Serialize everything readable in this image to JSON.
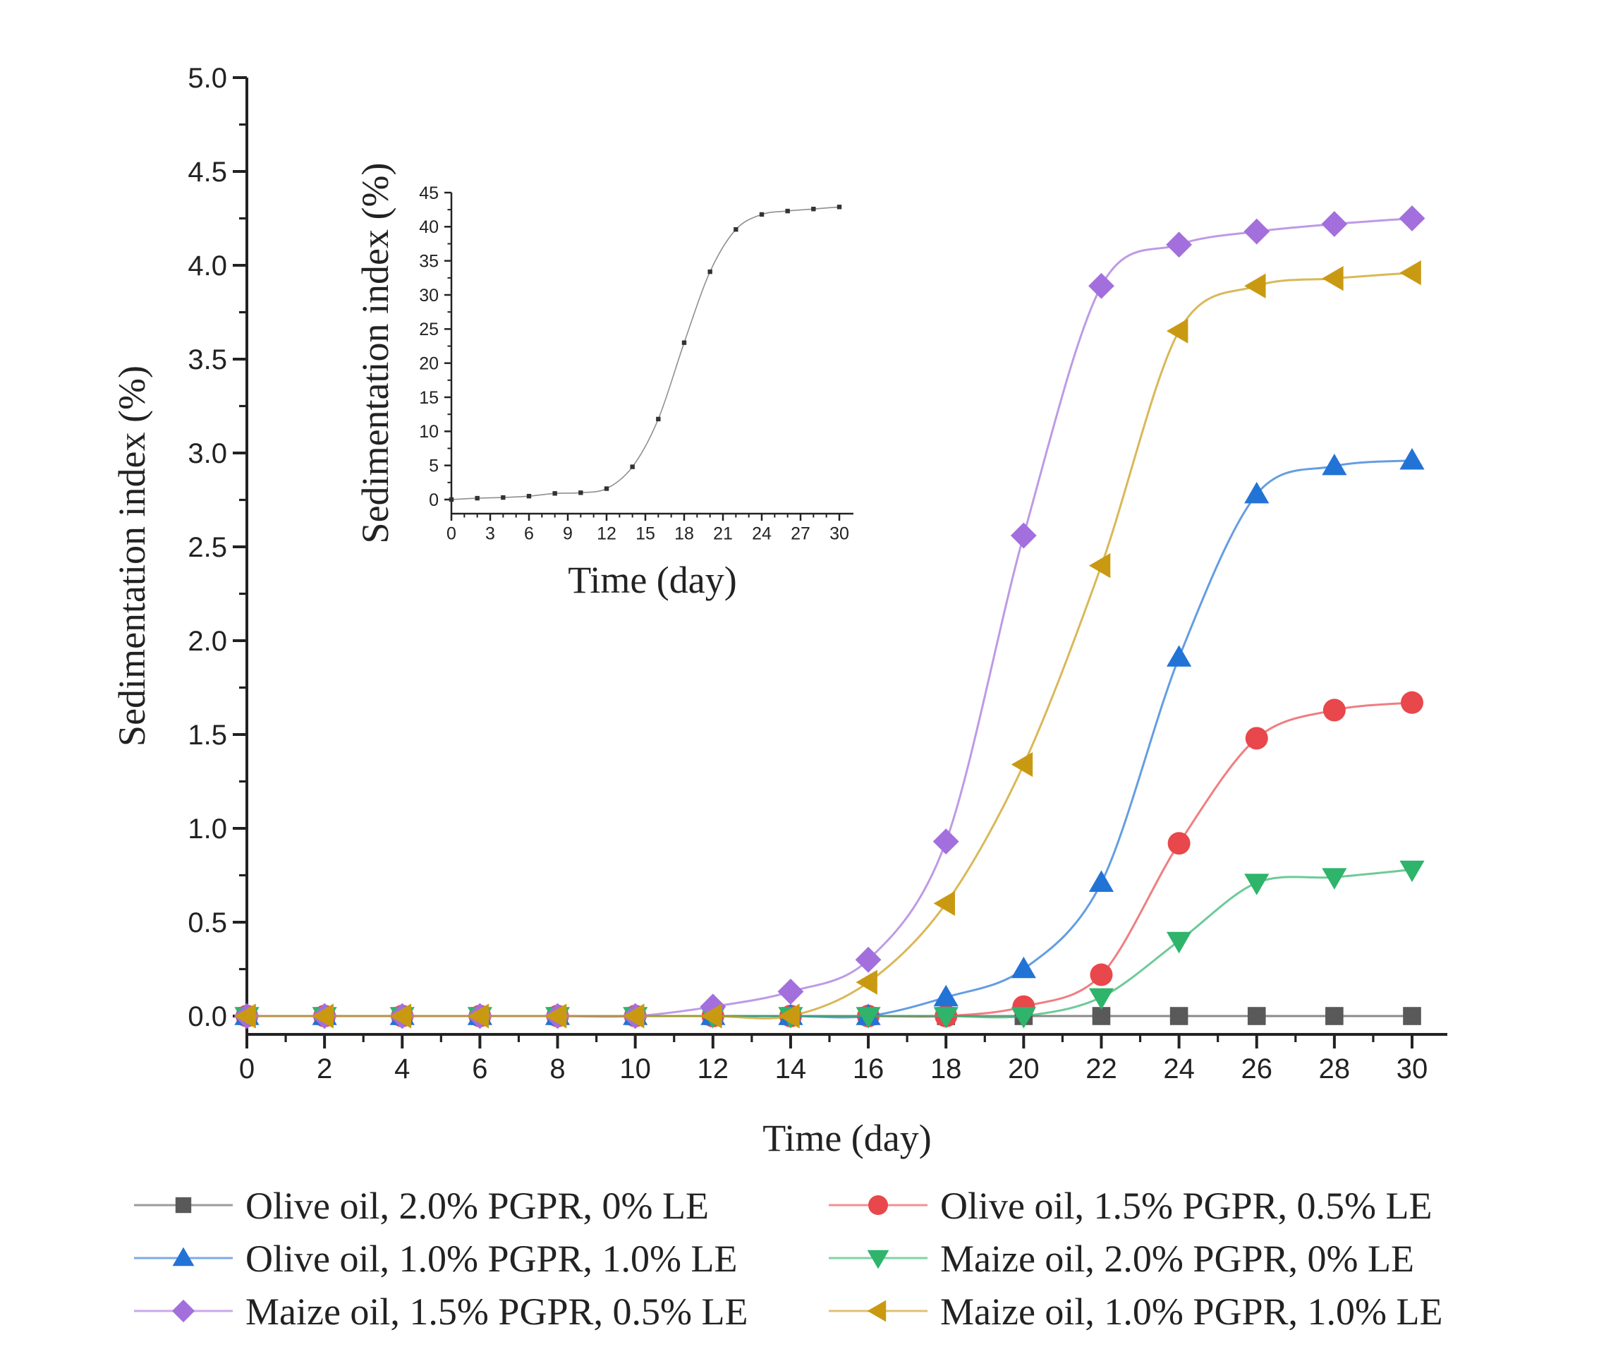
{
  "chart_data": [
    {
      "type": "line",
      "xlabel": "Time (day)",
      "ylabel": "Sedimentation index (%)",
      "xlim": [
        0,
        30
      ],
      "ylim": [
        0,
        5.0
      ],
      "xticks": [
        "0",
        "2",
        "4",
        "6",
        "8",
        "10",
        "12",
        "14",
        "16",
        "18",
        "20",
        "22",
        "24",
        "26",
        "28",
        "30"
      ],
      "yticks": [
        "0.0",
        "0.5",
        "1.0",
        "1.5",
        "2.0",
        "2.5",
        "3.0",
        "3.5",
        "4.0",
        "4.5",
        "5.0"
      ],
      "grid": false,
      "legend_position": "bottom",
      "x": [
        0,
        2,
        4,
        6,
        8,
        10,
        12,
        14,
        16,
        18,
        20,
        22,
        24,
        26,
        28,
        30
      ],
      "series": [
        {
          "name": "Olive oil, 2.0% PGPR, 0% LE",
          "color": "#595959",
          "marker": "square",
          "values": [
            0,
            0,
            0,
            0,
            0,
            0,
            0,
            0,
            0,
            0,
            0,
            0,
            0,
            0,
            0,
            0
          ]
        },
        {
          "name": "Olive oil, 1.5% PGPR, 0.5% LE",
          "color": "#e8474b",
          "marker": "circle",
          "values": [
            0,
            0,
            0,
            0,
            0,
            0,
            0,
            0,
            0,
            0,
            0.05,
            0.22,
            0.92,
            1.48,
            1.63,
            1.67
          ]
        },
        {
          "name": "Olive oil, 1.0% PGPR, 1.0% LE",
          "color": "#2273d6",
          "marker": "triangle-up",
          "values": [
            0,
            0,
            0,
            0,
            0,
            0,
            0,
            0,
            0,
            0.1,
            0.25,
            0.71,
            1.91,
            2.78,
            2.93,
            2.96
          ]
        },
        {
          "name": "Maize oil, 2.0% PGPR, 0% LE",
          "color": "#2fb46b",
          "marker": "triangle-down",
          "values": [
            0,
            0,
            0,
            0,
            0,
            0,
            0,
            0,
            0,
            0,
            0,
            0.1,
            0.4,
            0.71,
            0.74,
            0.78
          ]
        },
        {
          "name": "Maize oil, 1.5% PGPR, 0.5% LE",
          "color": "#a36fdc",
          "marker": "diamond",
          "values": [
            0,
            0,
            0,
            0,
            0,
            0,
            0.05,
            0.13,
            0.3,
            0.93,
            2.56,
            3.89,
            4.11,
            4.18,
            4.22,
            4.25
          ]
        },
        {
          "name": "Maize oil, 1.0% PGPR, 1.0% LE",
          "color": "#c99a11",
          "marker": "triangle-left",
          "values": [
            0,
            0,
            0,
            0,
            0,
            0,
            0,
            0,
            0.18,
            0.6,
            1.34,
            2.4,
            3.65,
            3.89,
            3.93,
            3.96
          ]
        }
      ]
    },
    {
      "type": "line",
      "xlabel": "Time (day)",
      "ylabel": "Sedimentation index (%)",
      "xlim": [
        0,
        30
      ],
      "ylim": [
        0,
        45
      ],
      "xticks": [
        "0",
        "3",
        "6",
        "9",
        "12",
        "15",
        "18",
        "21",
        "24",
        "27",
        "30"
      ],
      "yticks": [
        "0",
        "5",
        "10",
        "15",
        "20",
        "25",
        "30",
        "35",
        "40",
        "45"
      ],
      "grid": false,
      "x": [
        0,
        2,
        4,
        6,
        8,
        10,
        12,
        14,
        16,
        18,
        20,
        22,
        24,
        26,
        28,
        30
      ],
      "series": [
        {
          "color": "#333333",
          "marker": "square",
          "values": [
            0,
            0.2,
            0.3,
            0.5,
            0.9,
            1.0,
            1.6,
            4.8,
            11.8,
            23.0,
            33.4,
            39.6,
            41.8,
            42.3,
            42.6,
            42.9
          ]
        }
      ]
    }
  ]
}
